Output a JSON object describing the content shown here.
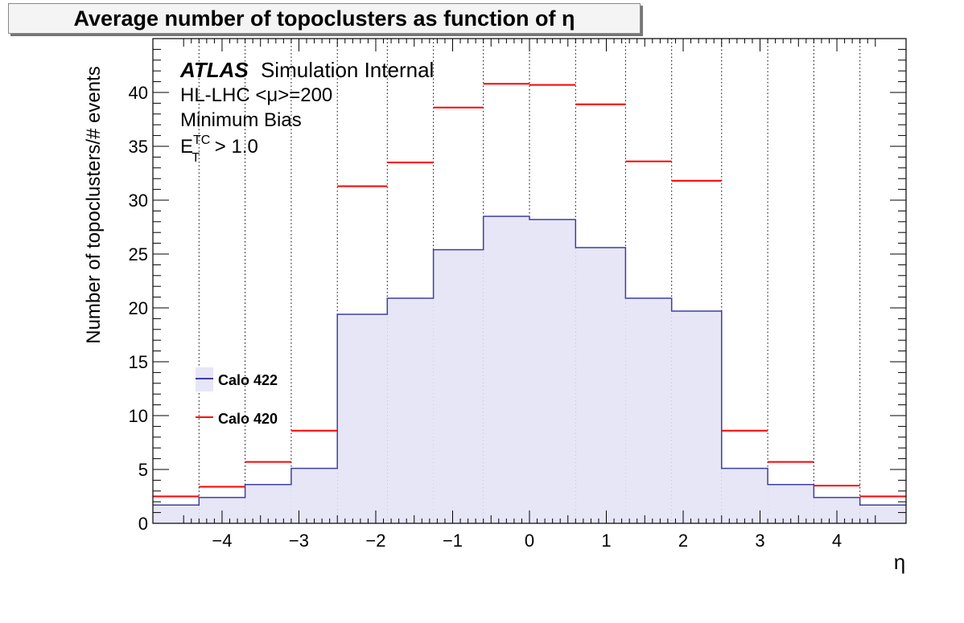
{
  "chart_data": {
    "type": "bar",
    "title": "Average number of topoclusters as function of η",
    "xlabel": "η",
    "ylabel": "Number of topoclusters/# events",
    "xlim": [
      -4.9,
      4.9
    ],
    "ylim": [
      0,
      45
    ],
    "xticks": [
      -4,
      -3,
      -2,
      -1,
      0,
      1,
      2,
      3,
      4
    ],
    "xtick_labels": [
      "−4",
      "−3",
      "−2",
      "−1",
      "0",
      "1",
      "2",
      "3",
      "4"
    ],
    "yticks": [
      0,
      5,
      10,
      15,
      20,
      25,
      30,
      35,
      40
    ],
    "grid": "vertical dotted lines at bin edges",
    "bin_edges": [
      -4.9,
      -4.3,
      -3.7,
      -3.1,
      -2.5,
      -1.85,
      -1.25,
      -0.6,
      0,
      0.6,
      1.25,
      1.85,
      2.5,
      3.1,
      3.7,
      4.3,
      4.9
    ],
    "series": [
      {
        "name": "Calo 422",
        "style": "filled-histogram",
        "color": "#3f3f9f",
        "fill": "#e6e6f7",
        "values": [
          1.7,
          2.4,
          3.6,
          5.1,
          19.4,
          20.9,
          25.4,
          28.5,
          28.2,
          25.6,
          20.9,
          19.7,
          5.1,
          3.6,
          2.4,
          1.7
        ]
      },
      {
        "name": "Calo 420",
        "style": "horizontal-markers",
        "color": "#ff0000",
        "values": [
          2.5,
          3.4,
          5.7,
          8.6,
          31.3,
          33.5,
          38.6,
          40.8,
          40.7,
          38.9,
          33.6,
          31.8,
          8.6,
          5.7,
          3.5,
          2.5
        ]
      }
    ],
    "legend_position": "lower-left",
    "annotations": {
      "atlas": "ATLAS",
      "label": "Simulation Internal",
      "line2": "HL-LHC <μ>=200",
      "line3": "Minimum Bias",
      "cut_base": "E",
      "cut_sup": "TC",
      "cut_sub": "T",
      "cut_rest": " > 1.0"
    }
  }
}
